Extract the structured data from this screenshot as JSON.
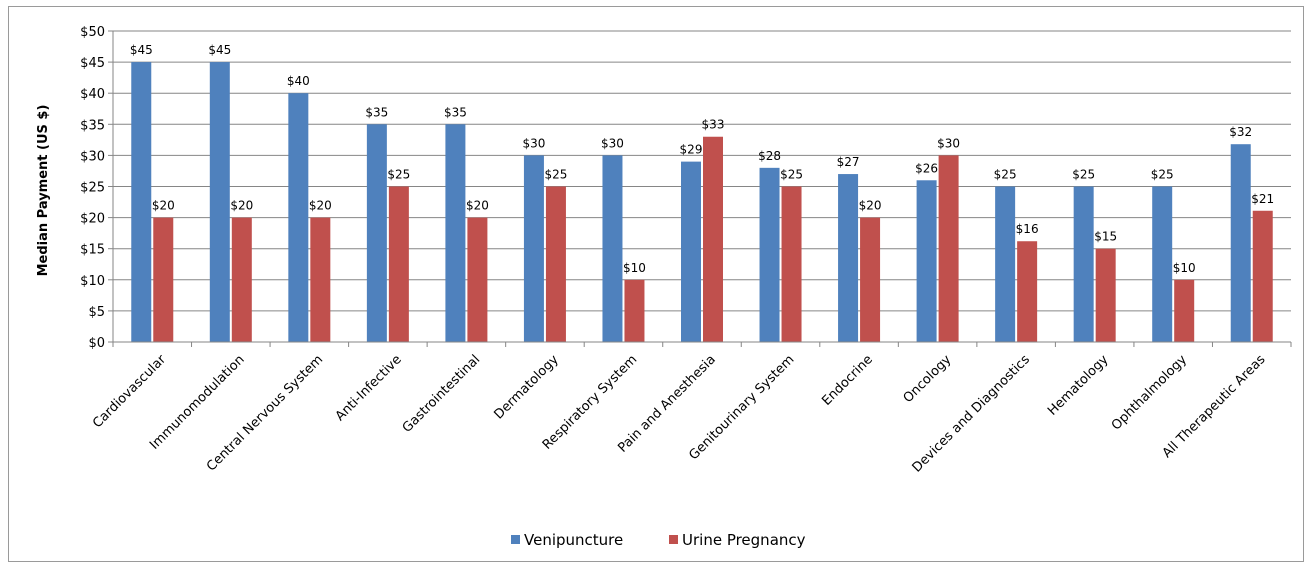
{
  "chart_data": {
    "type": "bar",
    "ylabel": "Median Payment (US $)",
    "xlabel": "",
    "ylim": [
      0,
      50
    ],
    "ytick_labels": [
      "$0",
      "$5",
      "$10",
      "$15",
      "$20",
      "$25",
      "$30",
      "$35",
      "$40",
      "$45",
      "$50"
    ],
    "grid": true,
    "legend_position": "bottom",
    "categories": [
      "Cardiovascular",
      "Immunomodulation",
      "Central Nervous System",
      "Anti-Infective",
      "Gastrointestinal",
      "Dermatology",
      "Respiratory System",
      "Pain and Anesthesia",
      "Genitourinary System",
      "Endocrine",
      "Oncology",
      "Devices and Diagnostics",
      "Hematology",
      "Ophthalmology",
      "All Therapeutic Areas"
    ],
    "series": [
      {
        "name": "Venipuncture",
        "color": "#4f81bd",
        "values": [
          45,
          45,
          40,
          35,
          35,
          30,
          30,
          29,
          28,
          27,
          26,
          25,
          25,
          25,
          31.8
        ],
        "labels": [
          "$45",
          "$45",
          "$40",
          "$35",
          "$35",
          "$30",
          "$30",
          "$29",
          "$28",
          "$27",
          "$26",
          "$25",
          "$25",
          "$25",
          "$32"
        ]
      },
      {
        "name": "Urine Pregnancy",
        "color": "#c0504d",
        "values": [
          20,
          20,
          20,
          25,
          20,
          25,
          10,
          33,
          25,
          20,
          30,
          16.2,
          15,
          10,
          21.1
        ],
        "labels": [
          "$20",
          "$20",
          "$20",
          "$25",
          "$20",
          "$25",
          "$10",
          "$33",
          "$25",
          "$20",
          "$30",
          "$16",
          "$15",
          "$10",
          "$21"
        ]
      }
    ]
  }
}
